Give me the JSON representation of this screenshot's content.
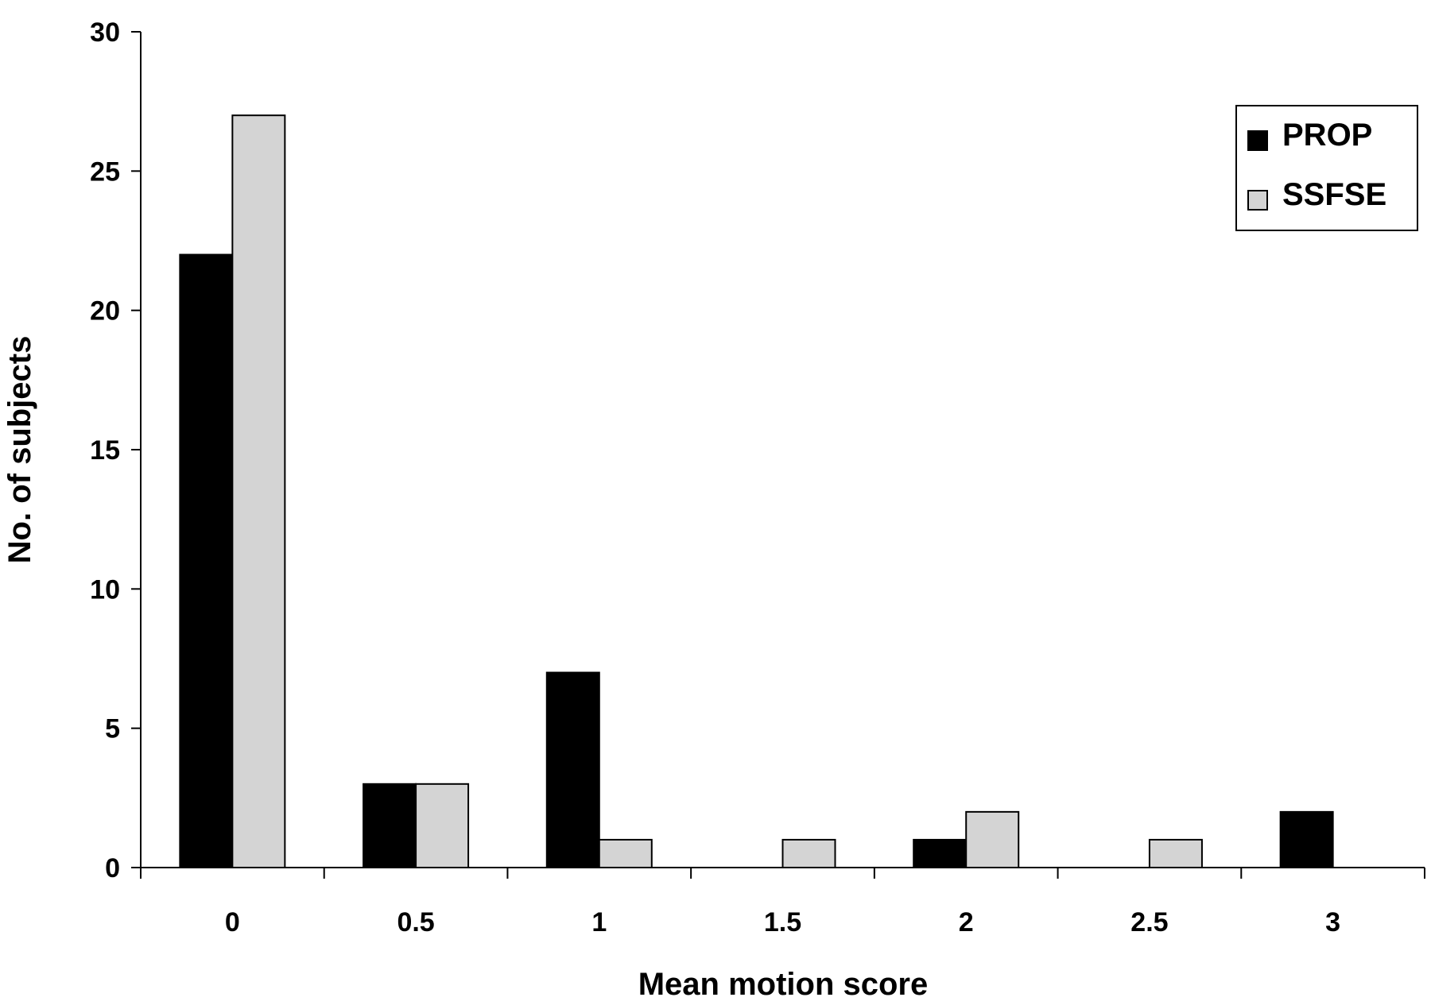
{
  "chart_data": {
    "type": "bar",
    "title": "",
    "xlabel": "Mean motion score",
    "ylabel": "No. of subjects",
    "categories": [
      "0",
      "0.5",
      "1",
      "1.5",
      "2",
      "2.5",
      "3"
    ],
    "series": [
      {
        "name": "PROP",
        "color": "#000000",
        "values": [
          22,
          3,
          7,
          0,
          1,
          0,
          2
        ]
      },
      {
        "name": "SSFSE",
        "color": "#d4d4d4",
        "values": [
          27,
          3,
          1,
          1,
          2,
          1,
          0
        ]
      }
    ],
    "ylim": [
      0,
      30
    ],
    "yticks": [
      "0",
      "5",
      "10",
      "15",
      "20",
      "25",
      "30"
    ],
    "grid": false,
    "legend_position": "top-right"
  }
}
